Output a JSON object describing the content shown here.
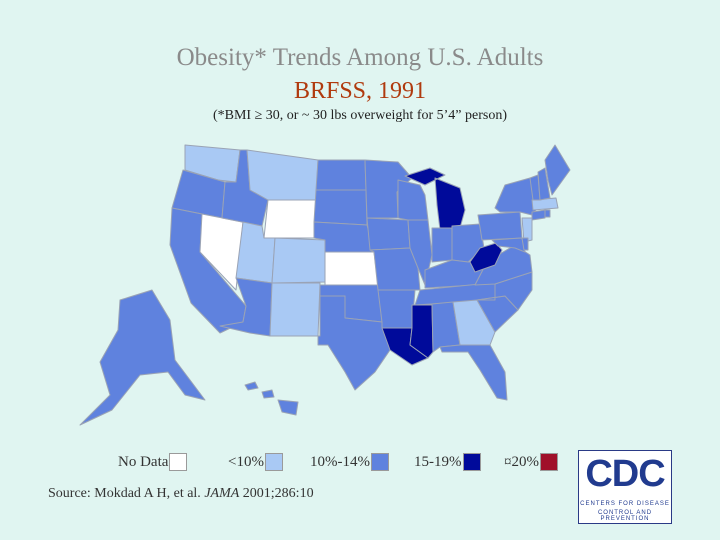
{
  "header": {
    "title": "Obesity* Trends Among U.S. Adults",
    "subtitle": "BRFSS, 1991",
    "note": "(*BMI ≥ 30, or ~ 30 lbs overweight for 5’4” person)"
  },
  "colors": {
    "background": "#e0f5f1",
    "no_data": "#ffffff",
    "lt10": "#a9c9f4",
    "r10_14": "#5f82de",
    "r15_19": "#000a9a",
    "ge20": "#a0102a",
    "state_border": "#9aa3b5"
  },
  "legend": [
    {
      "label": "No Data",
      "color": "#ffffff"
    },
    {
      "label": "<10%",
      "color": "#a9c9f4"
    },
    {
      "label": "10%-14%",
      "color": "#5f82de"
    },
    {
      "label": "15-19%",
      "color": "#000a9a"
    },
    {
      "label": "¤20%",
      "color": "#a0102a"
    }
  ],
  "source": {
    "prefix": "Source: Mokdad A H, et al. ",
    "journal": "JAMA",
    "suffix": " 2001;286:10"
  },
  "logo": {
    "text": "CDC",
    "line1": "CENTERS FOR DISEASE",
    "line2": "CONTROL AND PREVENTION"
  },
  "map": {
    "states": [
      {
        "name": "WA",
        "category": "lt10"
      },
      {
        "name": "OR",
        "category": "r10_14"
      },
      {
        "name": "CA",
        "category": "r10_14"
      },
      {
        "name": "NV",
        "category": "no_data"
      },
      {
        "name": "ID",
        "category": "r10_14"
      },
      {
        "name": "MT",
        "category": "lt10"
      },
      {
        "name": "WY",
        "category": "no_data"
      },
      {
        "name": "UT",
        "category": "lt10"
      },
      {
        "name": "AZ",
        "category": "r10_14"
      },
      {
        "name": "CO",
        "category": "lt10"
      },
      {
        "name": "NM",
        "category": "lt10"
      },
      {
        "name": "ND",
        "category": "r10_14"
      },
      {
        "name": "SD",
        "category": "r10_14"
      },
      {
        "name": "NE",
        "category": "r10_14"
      },
      {
        "name": "KS",
        "category": "no_data"
      },
      {
        "name": "OK",
        "category": "r10_14"
      },
      {
        "name": "TX",
        "category": "r10_14"
      },
      {
        "name": "MN",
        "category": "r10_14"
      },
      {
        "name": "IA",
        "category": "r10_14"
      },
      {
        "name": "MO",
        "category": "r10_14"
      },
      {
        "name": "AR",
        "category": "r10_14"
      },
      {
        "name": "LA",
        "category": "r15_19"
      },
      {
        "name": "WI",
        "category": "r10_14"
      },
      {
        "name": "IL",
        "category": "r10_14"
      },
      {
        "name": "MI",
        "category": "r15_19"
      },
      {
        "name": "IN",
        "category": "r10_14"
      },
      {
        "name": "OH",
        "category": "r10_14"
      },
      {
        "name": "KY",
        "category": "r10_14"
      },
      {
        "name": "TN",
        "category": "r10_14"
      },
      {
        "name": "MS",
        "category": "r15_19"
      },
      {
        "name": "AL",
        "category": "r10_14"
      },
      {
        "name": "GA",
        "category": "lt10"
      },
      {
        "name": "FL",
        "category": "r10_14"
      },
      {
        "name": "SC",
        "category": "r10_14"
      },
      {
        "name": "NC",
        "category": "r10_14"
      },
      {
        "name": "VA",
        "category": "r10_14"
      },
      {
        "name": "WV",
        "category": "r15_19"
      },
      {
        "name": "PA",
        "category": "r10_14"
      },
      {
        "name": "NY",
        "category": "r10_14"
      },
      {
        "name": "NJ",
        "category": "lt10"
      },
      {
        "name": "MD",
        "category": "r10_14"
      },
      {
        "name": "DE",
        "category": "r10_14"
      },
      {
        "name": "CT",
        "category": "r10_14"
      },
      {
        "name": "MA",
        "category": "lt10"
      },
      {
        "name": "RI",
        "category": "r10_14"
      },
      {
        "name": "VT",
        "category": "r10_14"
      },
      {
        "name": "NH",
        "category": "r10_14"
      },
      {
        "name": "ME",
        "category": "r10_14"
      },
      {
        "name": "AK",
        "category": "r10_14"
      },
      {
        "name": "HI",
        "category": "r10_14"
      }
    ]
  }
}
